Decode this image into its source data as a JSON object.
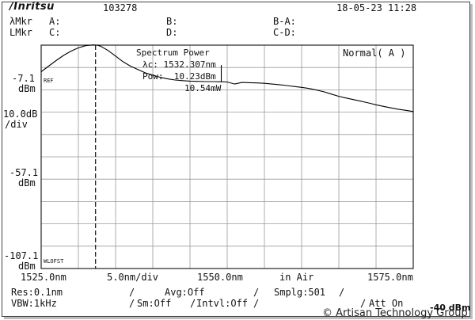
{
  "header": {
    "logo": "/Inritsu",
    "model": "103278",
    "datetime": "18-05-23 11:28",
    "marker_rows": [
      {
        "label": "λMkr",
        "a": "A:",
        "b": "B:",
        "ba": "B-A:"
      },
      {
        "label": "LMkr",
        "a": "C:",
        "b": "D:",
        "ba": "C-D:"
      }
    ]
  },
  "mode": "Normal( A )",
  "analysis": {
    "title": "Spectrum Power",
    "lambda_c": "λc: 1532.307nm",
    "pow": "Pow:  10.23dBm",
    "mw": "10.54mW"
  },
  "left_axis": {
    "top_value": "-7.1",
    "top_unit": "dBm",
    "scale_value": "10.0dB",
    "scale_unit": "/div",
    "mid_value": "-57.1",
    "mid_unit": "dBm",
    "bottom_value": "-107.1",
    "bottom_unit": "dBm",
    "ref_tag": "REF",
    "wlofst_tag": "WLOFST"
  },
  "x_axis": {
    "start": "1525.0nm",
    "span": "5.0nm/div",
    "center": "1550.0nm",
    "medium": "in Air",
    "stop": "1575.0nm"
  },
  "settings": {
    "res": "Res:0.1nm",
    "avg": "Avg:Off",
    "smplg": "Smplg:501",
    "vbw": "VBW:1kHz",
    "sm": "Sm:Off",
    "intvl": "Intvl:Off",
    "att": "Att On",
    "att_value": "-40 dBm"
  },
  "watermark": "© Artisan Technology Group",
  "chart_data": {
    "type": "line",
    "x_range": [
      1525.0,
      1575.0
    ],
    "y_range": [
      -107.1,
      -7.1
    ],
    "x_divisions": 10,
    "y_divisions": 10,
    "grid": true,
    "marker_line_x": 1532.307,
    "series": [
      {
        "x": [
          1525.0,
          1526.0,
          1527.0,
          1528.0,
          1529.0,
          1530.0,
          1531.0,
          1532.0,
          1532.5,
          1533.0,
          1534.0,
          1535.0,
          1536.0,
          1537.0,
          1538.0,
          1539.0,
          1540.0,
          1541.0,
          1542.0,
          1543.0,
          1544.0,
          1545.0,
          1546.0,
          1547.0,
          1548.0,
          1549.0,
          1550.0,
          1551.0,
          1552.0,
          1553.0,
          1554.0,
          1555.0,
          1556.0,
          1557.0,
          1558.0,
          1559.0,
          1560.0,
          1561.0,
          1562.0,
          1563.0,
          1564.0,
          1565.0,
          1566.0,
          1567.0,
          1568.0,
          1569.0,
          1570.0,
          1571.0,
          1572.0,
          1573.0,
          1574.0,
          1575.0
        ],
        "y": [
          -19.0,
          -16.5,
          -14.0,
          -11.7,
          -9.8,
          -8.3,
          -7.3,
          -7.0,
          -7.1,
          -7.6,
          -9.5,
          -12.0,
          -14.5,
          -16.5,
          -18.0,
          -19.5,
          -20.5,
          -21.5,
          -22.2,
          -22.7,
          -23.0,
          -23.2,
          -23.3,
          -23.4,
          -23.4,
          -23.5,
          -23.6,
          -24.5,
          -23.8,
          -23.9,
          -24.0,
          -24.2,
          -24.5,
          -24.8,
          -25.2,
          -25.6,
          -26.0,
          -26.5,
          -27.2,
          -28.0,
          -29.0,
          -30.0,
          -30.8,
          -31.5,
          -32.2,
          -33.0,
          -33.8,
          -34.5,
          -35.2,
          -35.8,
          -36.3,
          -36.8
        ]
      }
    ],
    "spike": {
      "x": 1549.2,
      "y_top": -16.0,
      "y_base": -23.6
    }
  }
}
